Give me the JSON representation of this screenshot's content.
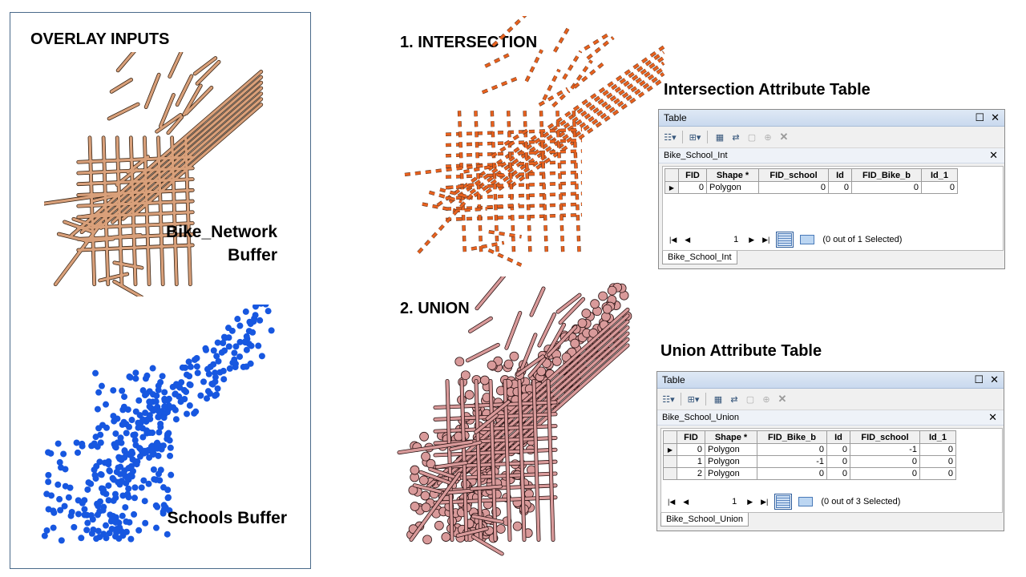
{
  "inputs": {
    "heading": "OVERLAY INPUTS",
    "bike_label": [
      "Bike_Network",
      "Buffer"
    ],
    "schools_label": "Schools Buffer"
  },
  "intersection": {
    "heading": "1. INTERSECTION",
    "table_heading": "Intersection Attribute Table",
    "window": {
      "title": "Table",
      "layer_name": "Bike_School_Int",
      "columns": [
        "FID",
        "Shape *",
        "FID_school",
        "Id",
        "FID_Bike_b",
        "Id_1"
      ],
      "rows": [
        [
          "0",
          "Polygon",
          "0",
          "0",
          "0",
          "0"
        ]
      ],
      "record_number": "1",
      "selection_status": "(0 out of 1 Selected)",
      "tab_label": "Bike_School_Int"
    }
  },
  "union": {
    "heading": "2. UNION",
    "table_heading": "Union Attribute Table",
    "window": {
      "title": "Table",
      "layer_name": "Bike_School_Union",
      "columns": [
        "FID",
        "Shape *",
        "FID_Bike_b",
        "Id",
        "FID_school",
        "Id_1"
      ],
      "rows": [
        [
          "0",
          "Polygon",
          "0",
          "0",
          "-1",
          "0"
        ],
        [
          "1",
          "Polygon",
          "-1",
          "0",
          "0",
          "0"
        ],
        [
          "2",
          "Polygon",
          "0",
          "0",
          "0",
          "0"
        ]
      ],
      "record_number": "1",
      "selection_status": "(0 out of 3 Selected)",
      "tab_label": "Bike_School_Union"
    }
  },
  "colors": {
    "bike_fill": "#d9a07a",
    "bike_stroke": "#3a2616",
    "intersection_fill": "#e8611e",
    "schools_fill": "#1757e0",
    "union_fill": "#d99a9a",
    "union_stroke": "#2a1414"
  }
}
